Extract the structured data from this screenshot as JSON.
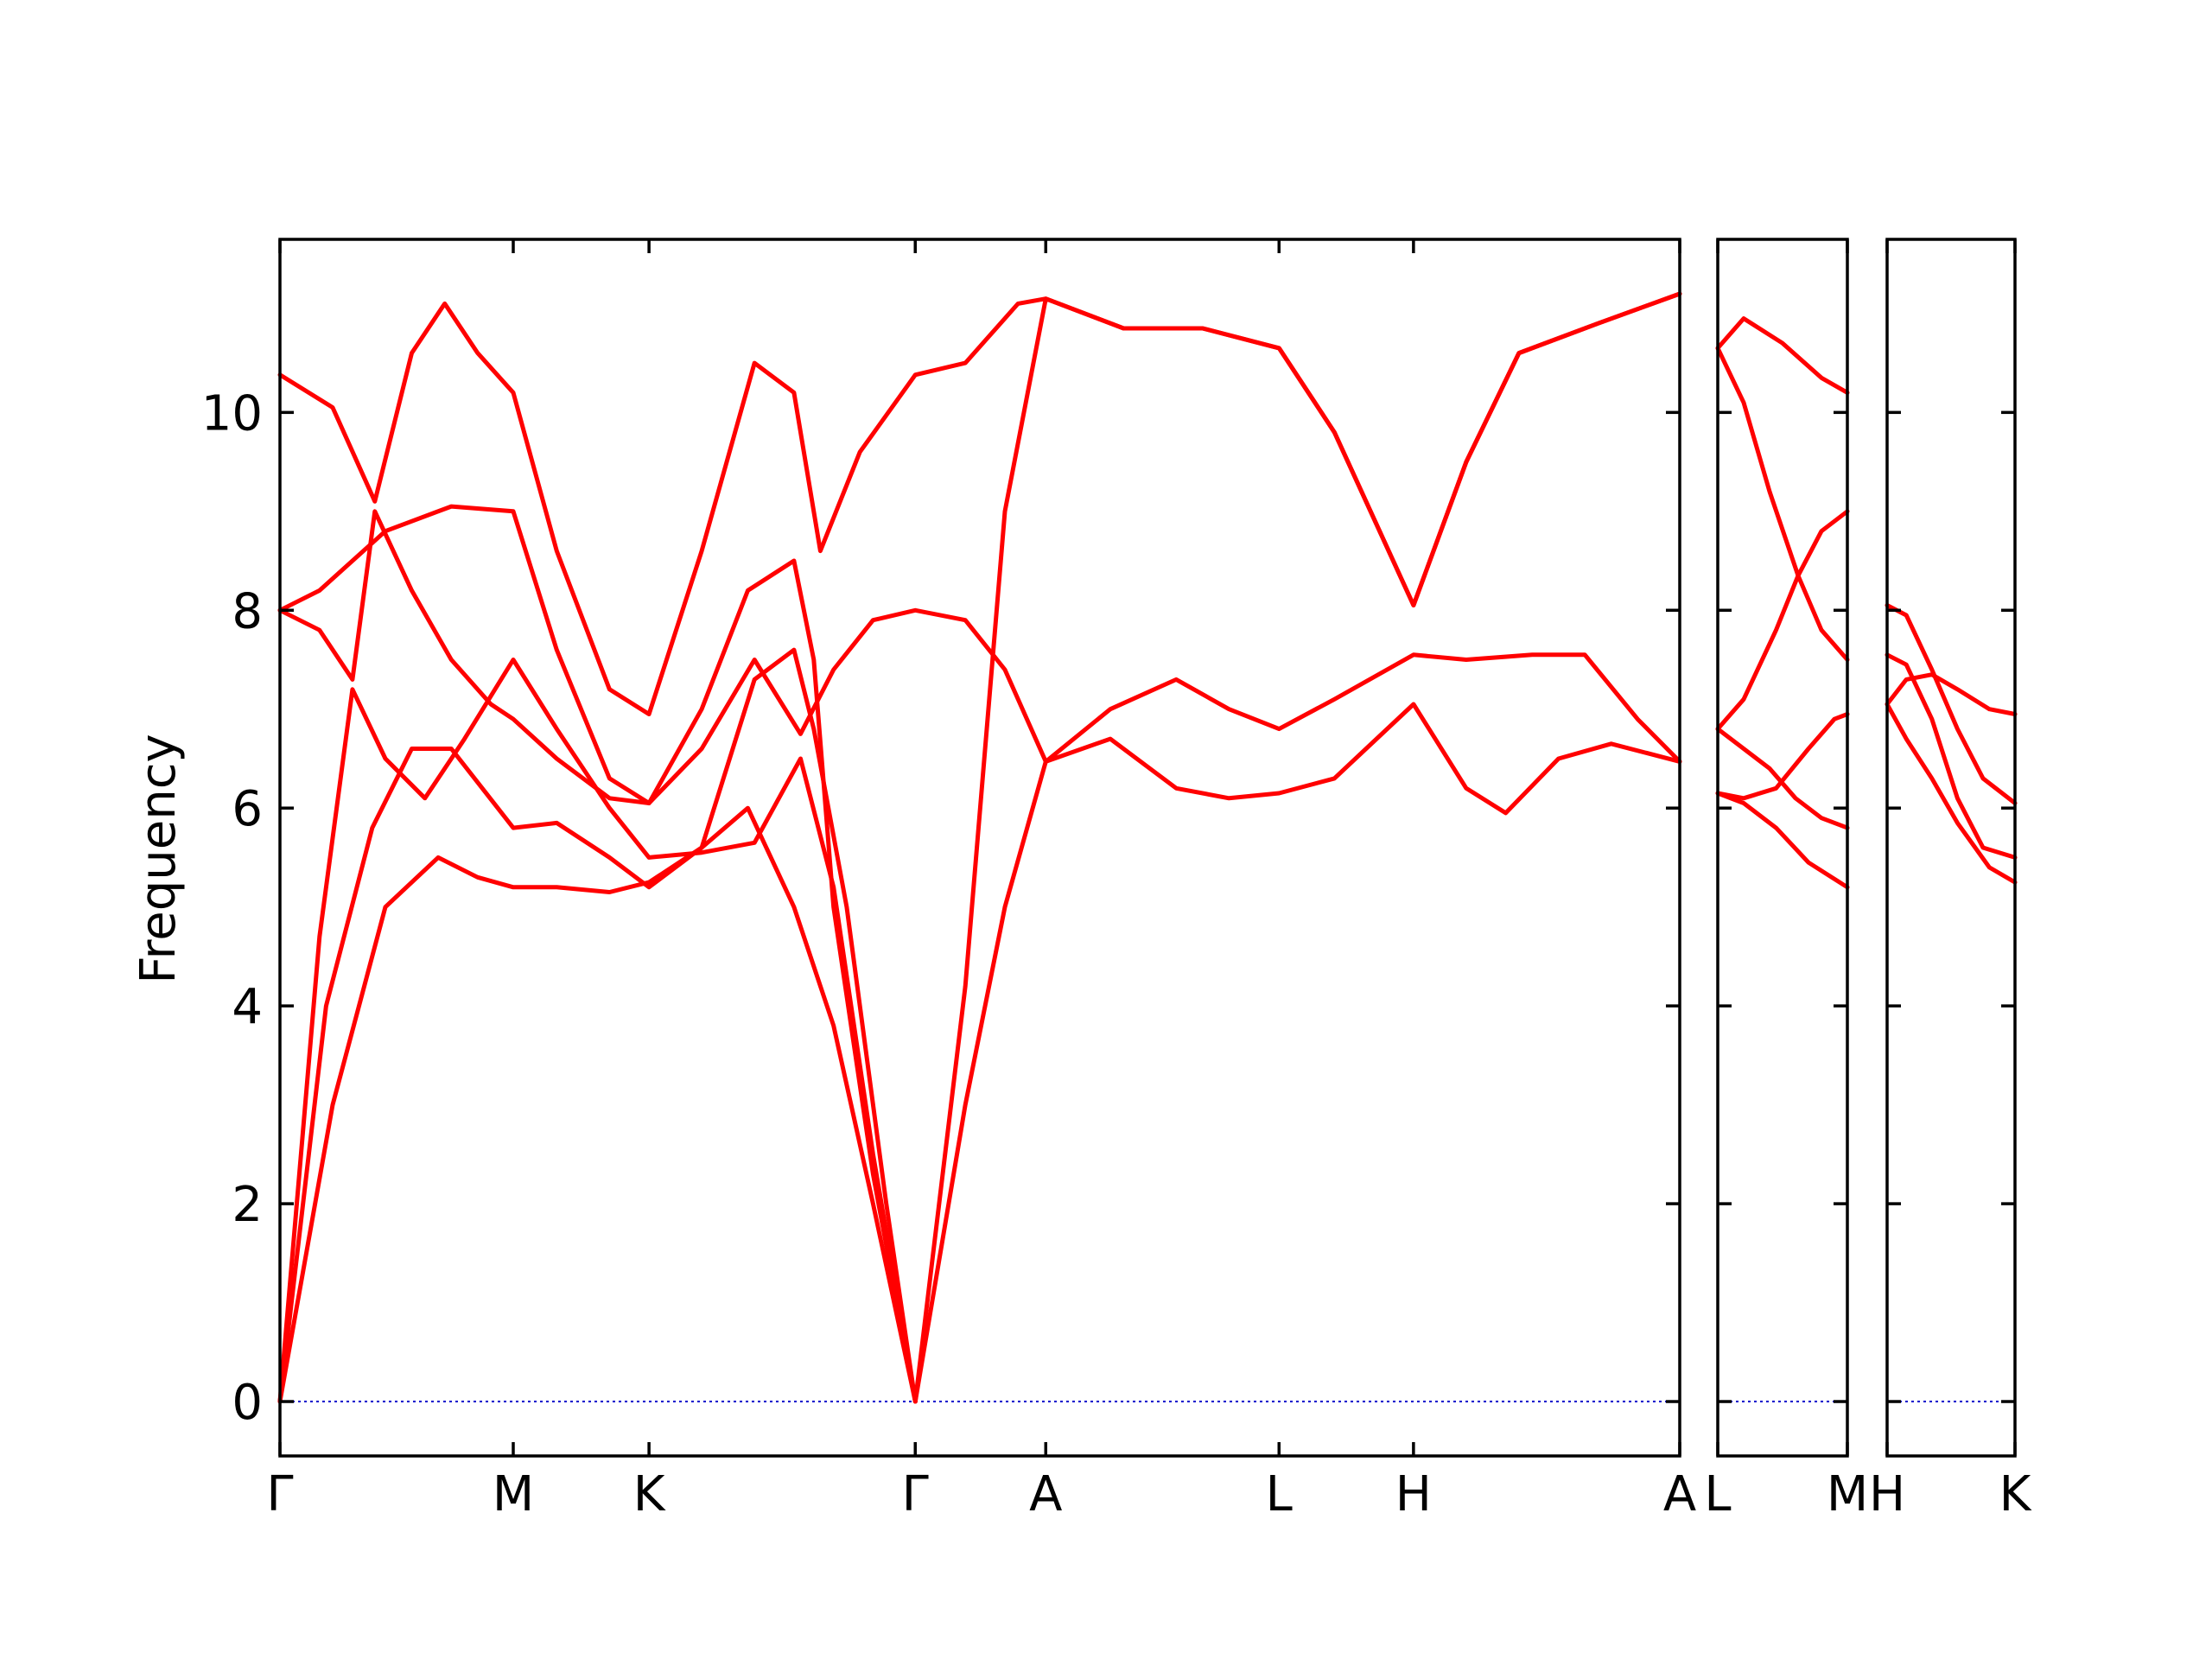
{
  "chart_data": {
    "type": "line",
    "ylabel": "Frequency",
    "ylim": [
      -0.55,
      11.75
    ],
    "yticks": [
      0,
      2,
      4,
      6,
      8,
      10
    ],
    "grid": false,
    "colors": {
      "bands": "#ff0000",
      "zero_line": "#0000cc",
      "frame": "#000000"
    },
    "panels": [
      {
        "xlim": [
          0,
          10.62
        ],
        "ticks": [
          {
            "x": 0,
            "label": "Γ"
          },
          {
            "x": 1.77,
            "label": "M"
          },
          {
            "x": 2.8,
            "label": "K"
          },
          {
            "x": 4.82,
            "label": "Γ"
          },
          {
            "x": 5.81,
            "label": "A"
          },
          {
            "x": 7.58,
            "label": "L"
          },
          {
            "x": 8.6,
            "label": "H"
          },
          {
            "x": 10.62,
            "label": "A"
          }
        ],
        "series": [
          {
            "points": [
              [
                0,
                10.38
              ],
              [
                0.4,
                10.05
              ],
              [
                0.72,
                9.1
              ],
              [
                1.0,
                10.6
              ],
              [
                1.25,
                11.1
              ],
              [
                1.5,
                10.6
              ],
              [
                1.77,
                10.2
              ],
              [
                2.1,
                8.6
              ],
              [
                2.5,
                7.2
              ],
              [
                2.8,
                6.95
              ],
              [
                3.2,
                8.6
              ],
              [
                3.6,
                10.5
              ],
              [
                3.9,
                10.2
              ],
              [
                4.1,
                8.6
              ],
              [
                4.4,
                9.6
              ],
              [
                4.82,
                10.38
              ],
              [
                5.2,
                10.5
              ],
              [
                5.6,
                11.1
              ],
              [
                5.81,
                11.15
              ],
              [
                6.4,
                10.85
              ],
              [
                7.0,
                10.85
              ],
              [
                7.58,
                10.65
              ],
              [
                8.0,
                9.8
              ],
              [
                8.6,
                8.05
              ],
              [
                9.0,
                9.5
              ],
              [
                9.4,
                10.6
              ],
              [
                10.0,
                10.9
              ],
              [
                10.62,
                11.2
              ]
            ]
          },
          {
            "points": [
              [
                0,
                8.0
              ],
              [
                0.3,
                8.2
              ],
              [
                0.8,
                8.8
              ],
              [
                1.3,
                9.05
              ],
              [
                1.77,
                9.0
              ],
              [
                2.1,
                7.6
              ],
              [
                2.5,
                6.3
              ],
              [
                2.8,
                6.05
              ],
              [
                3.2,
                6.6
              ],
              [
                3.6,
                7.5
              ],
              [
                3.95,
                6.75
              ],
              [
                4.2,
                7.4
              ],
              [
                4.5,
                7.9
              ],
              [
                4.82,
                8.0
              ],
              [
                5.2,
                7.9
              ],
              [
                5.5,
                7.4
              ],
              [
                5.81,
                6.47
              ],
              [
                6.3,
                7.0
              ],
              [
                6.8,
                7.3
              ],
              [
                7.2,
                7.0
              ],
              [
                7.58,
                6.8
              ],
              [
                8.0,
                7.1
              ],
              [
                8.6,
                7.55
              ],
              [
                9.0,
                7.5
              ],
              [
                9.5,
                7.55
              ],
              [
                9.9,
                7.55
              ],
              [
                10.3,
                6.9
              ],
              [
                10.62,
                6.47
              ]
            ]
          },
          {
            "points": [
              [
                0,
                8.0
              ],
              [
                0.3,
                7.8
              ],
              [
                0.55,
                7.3
              ],
              [
                0.72,
                9.0
              ],
              [
                1.0,
                8.2
              ],
              [
                1.3,
                7.5
              ],
              [
                1.6,
                7.05
              ],
              [
                1.77,
                6.9
              ],
              [
                2.1,
                6.5
              ],
              [
                2.5,
                6.1
              ],
              [
                2.8,
                6.05
              ],
              [
                3.2,
                7.0
              ],
              [
                3.55,
                8.2
              ],
              [
                3.9,
                8.5
              ],
              [
                4.05,
                7.5
              ],
              [
                4.2,
                5.0
              ],
              [
                4.5,
                2.3
              ],
              [
                4.82,
                0
              ],
              [
                5.2,
                4.2
              ],
              [
                5.5,
                9.0
              ],
              [
                5.81,
                11.15
              ],
              [
                6.4,
                10.85
              ],
              [
                7.0,
                10.85
              ],
              [
                7.58,
                10.65
              ],
              [
                8.0,
                9.8
              ],
              [
                8.6,
                8.05
              ],
              [
                9.0,
                9.5
              ],
              [
                9.4,
                10.6
              ],
              [
                10.0,
                10.9
              ],
              [
                10.62,
                11.2
              ]
            ]
          },
          {
            "points": [
              [
                0,
                0
              ],
              [
                0.3,
                4.7
              ],
              [
                0.55,
                7.2
              ],
              [
                0.8,
                6.5
              ],
              [
                1.1,
                6.1
              ],
              [
                1.4,
                6.7
              ],
              [
                1.77,
                7.5
              ],
              [
                2.1,
                6.8
              ],
              [
                2.5,
                6.0
              ],
              [
                2.8,
                5.5
              ],
              [
                3.2,
                5.55
              ],
              [
                3.6,
                5.65
              ],
              [
                3.95,
                6.5
              ],
              [
                4.2,
                5.2
              ],
              [
                4.5,
                2.5
              ],
              [
                4.82,
                0
              ],
              [
                5.2,
                3.0
              ],
              [
                5.5,
                5.0
              ],
              [
                5.81,
                6.47
              ],
              [
                6.3,
                6.7
              ],
              [
                6.8,
                6.2
              ],
              [
                7.2,
                6.1
              ],
              [
                7.58,
                6.15
              ],
              [
                8.0,
                6.3
              ],
              [
                8.6,
                7.05
              ],
              [
                9.0,
                6.2
              ],
              [
                9.3,
                5.95
              ],
              [
                9.7,
                6.5
              ],
              [
                10.1,
                6.65
              ],
              [
                10.62,
                6.47
              ]
            ]
          },
          {
            "points": [
              [
                0,
                0
              ],
              [
                0.35,
                4.0
              ],
              [
                0.7,
                5.8
              ],
              [
                1.0,
                6.6
              ],
              [
                1.3,
                6.6
              ],
              [
                1.77,
                5.8
              ],
              [
                2.1,
                5.85
              ],
              [
                2.5,
                5.5
              ],
              [
                2.8,
                5.2
              ],
              [
                3.2,
                5.6
              ],
              [
                3.6,
                7.3
              ],
              [
                3.9,
                7.6
              ],
              [
                4.05,
                6.8
              ],
              [
                4.3,
                5.0
              ],
              [
                4.6,
                2.0
              ],
              [
                4.82,
                0
              ]
            ]
          },
          {
            "points": [
              [
                0,
                0
              ],
              [
                0.4,
                3.0
              ],
              [
                0.8,
                5.0
              ],
              [
                1.2,
                5.5
              ],
              [
                1.5,
                5.3
              ],
              [
                1.77,
                5.2
              ],
              [
                2.1,
                5.2
              ],
              [
                2.5,
                5.15
              ],
              [
                2.8,
                5.25
              ],
              [
                3.2,
                5.6
              ],
              [
                3.55,
                6.0
              ],
              [
                3.9,
                5.0
              ],
              [
                4.2,
                3.8
              ],
              [
                4.5,
                2.0
              ],
              [
                4.82,
                0
              ]
            ]
          }
        ]
      },
      {
        "xlim": [
          0,
          1
        ],
        "ticks": [
          {
            "x": 0,
            "label": "L"
          },
          {
            "x": 1,
            "label": "M"
          }
        ],
        "series": [
          {
            "points": [
              [
                0,
                10.65
              ],
              [
                0.2,
                10.95
              ],
              [
                0.5,
                10.7
              ],
              [
                0.8,
                10.35
              ],
              [
                1.0,
                10.2
              ]
            ]
          },
          {
            "points": [
              [
                0,
                10.65
              ],
              [
                0.2,
                10.1
              ],
              [
                0.4,
                9.2
              ],
              [
                0.62,
                8.35
              ],
              [
                0.8,
                7.8
              ],
              [
                1.0,
                7.5
              ]
            ]
          },
          {
            "points": [
              [
                0,
                6.8
              ],
              [
                0.2,
                7.1
              ],
              [
                0.45,
                7.8
              ],
              [
                0.62,
                8.35
              ],
              [
                0.8,
                8.8
              ],
              [
                1.0,
                9.0
              ]
            ]
          },
          {
            "points": [
              [
                0,
                6.8
              ],
              [
                0.2,
                6.6
              ],
              [
                0.4,
                6.4
              ],
              [
                0.6,
                6.1
              ],
              [
                0.8,
                5.9
              ],
              [
                1.0,
                5.8
              ]
            ]
          },
          {
            "points": [
              [
                0,
                6.15
              ],
              [
                0.2,
                6.1
              ],
              [
                0.45,
                6.2
              ],
              [
                0.7,
                6.6
              ],
              [
                0.9,
                6.9
              ],
              [
                1.0,
                6.95
              ]
            ]
          },
          {
            "points": [
              [
                0,
                6.15
              ],
              [
                0.2,
                6.05
              ],
              [
                0.45,
                5.8
              ],
              [
                0.7,
                5.45
              ],
              [
                1.0,
                5.2
              ]
            ]
          }
        ]
      },
      {
        "xlim": [
          0,
          1
        ],
        "ticks": [
          {
            "x": 0,
            "label": "H"
          },
          {
            "x": 1,
            "label": "K"
          }
        ],
        "series": [
          {
            "points": [
              [
                0,
                8.05
              ],
              [
                0.15,
                7.95
              ],
              [
                0.35,
                7.4
              ],
              [
                0.55,
                6.8
              ],
              [
                0.75,
                6.3
              ],
              [
                1.0,
                6.05
              ]
            ]
          },
          {
            "points": [
              [
                0,
                7.55
              ],
              [
                0.15,
                7.45
              ],
              [
                0.35,
                6.9
              ],
              [
                0.55,
                6.1
              ],
              [
                0.75,
                5.6
              ],
              [
                1.0,
                5.5
              ]
            ]
          },
          {
            "points": [
              [
                0,
                7.05
              ],
              [
                0.15,
                7.3
              ],
              [
                0.35,
                7.35
              ],
              [
                0.55,
                7.2
              ],
              [
                0.8,
                7.0
              ],
              [
                1.0,
                6.95
              ]
            ]
          },
          {
            "points": [
              [
                0,
                7.05
              ],
              [
                0.15,
                6.7
              ],
              [
                0.35,
                6.3
              ],
              [
                0.55,
                5.85
              ],
              [
                0.8,
                5.4
              ],
              [
                1.0,
                5.25
              ]
            ]
          }
        ]
      }
    ]
  }
}
